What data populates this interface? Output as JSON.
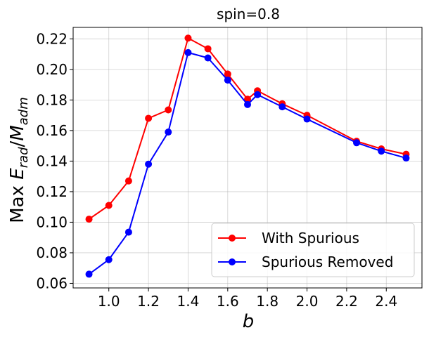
{
  "chart_data": {
    "type": "line",
    "title": "spin=0.8",
    "xlabel": "b",
    "ylabel": "Max E_rad/M_adm",
    "ylabel_parts": {
      "prefix": "Max ",
      "E": "E",
      "rad": "rad",
      "slash": "/",
      "M": "M",
      "adm": "adm"
    },
    "xlim": [
      0.82,
      2.58
    ],
    "ylim": [
      0.057,
      0.2275
    ],
    "x_ticks": [
      1.0,
      1.2,
      1.4,
      1.6,
      1.8,
      2.0,
      2.2,
      2.4
    ],
    "x_tick_labels": [
      "1.0",
      "1.2",
      "1.4",
      "1.6",
      "1.8",
      "2.0",
      "2.2",
      "2.4"
    ],
    "y_ticks": [
      0.06,
      0.08,
      0.1,
      0.12,
      0.14,
      0.16,
      0.18,
      0.2,
      0.22
    ],
    "y_tick_labels": [
      "0.06",
      "0.08",
      "0.10",
      "0.12",
      "0.14",
      "0.16",
      "0.18",
      "0.20",
      "0.22"
    ],
    "grid": true,
    "legend_position": "lower-right",
    "x": [
      0.9,
      1.0,
      1.1,
      1.2,
      1.3,
      1.4,
      1.5,
      1.6,
      1.7,
      1.75,
      1.875,
      2.0,
      2.25,
      2.375,
      2.5
    ],
    "series": [
      {
        "name": "With Spurious",
        "color": "#ff0000",
        "values": [
          0.102,
          0.111,
          0.127,
          0.168,
          0.1735,
          0.2205,
          0.2135,
          0.197,
          0.1805,
          0.186,
          0.1775,
          0.17,
          0.153,
          0.148,
          0.1445
        ]
      },
      {
        "name": "Spurious Removed",
        "color": "#0000ff",
        "values": [
          0.066,
          0.0755,
          0.0935,
          0.138,
          0.159,
          0.211,
          0.2075,
          0.193,
          0.177,
          0.1835,
          0.1755,
          0.1675,
          0.152,
          0.1465,
          0.142
        ]
      }
    ]
  }
}
